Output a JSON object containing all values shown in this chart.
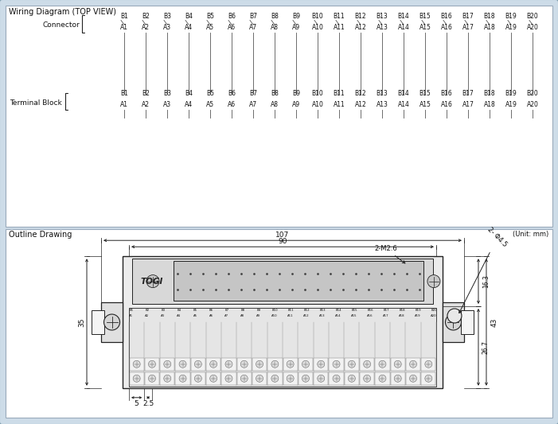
{
  "bg_color": "#cddce8",
  "border_color": "#8aaabb",
  "line_color": "#222222",
  "label_color": "#111111",
  "section1_title": "Wiring Diagram (TOP VIEW)",
  "section2_title": "Outline Drawing",
  "unit_label": "(Unit: mm)",
  "connector_label": "Connector",
  "terminal_block_label": "Terminal Block",
  "b_row": [
    "B1",
    "B2",
    "B3",
    "B4",
    "B5",
    "B6",
    "B7",
    "B8",
    "B9",
    "B10",
    "B11",
    "B12",
    "B13",
    "B14",
    "B15",
    "B16",
    "B17",
    "B18",
    "B19",
    "B20"
  ],
  "a_row": [
    "A1",
    "A2",
    "A3",
    "A4",
    "A5",
    "A6",
    "A7",
    "A8",
    "A9",
    "A10",
    "A11",
    "A12",
    "A13",
    "A14",
    "A15",
    "A16",
    "A17",
    "A18",
    "A19",
    "A20"
  ],
  "dim_107": "107",
  "dim_90": "90",
  "dim_35": "35",
  "dim_43": "43",
  "dim_16_3": "16.3",
  "dim_26_7": "26.7",
  "dim_5": "5",
  "dim_2_5": "2.5",
  "dim_2M2_6": "2-M2.6",
  "dim_2_phi4_5": "2- Φ4.5",
  "togi_label": "TOGI"
}
